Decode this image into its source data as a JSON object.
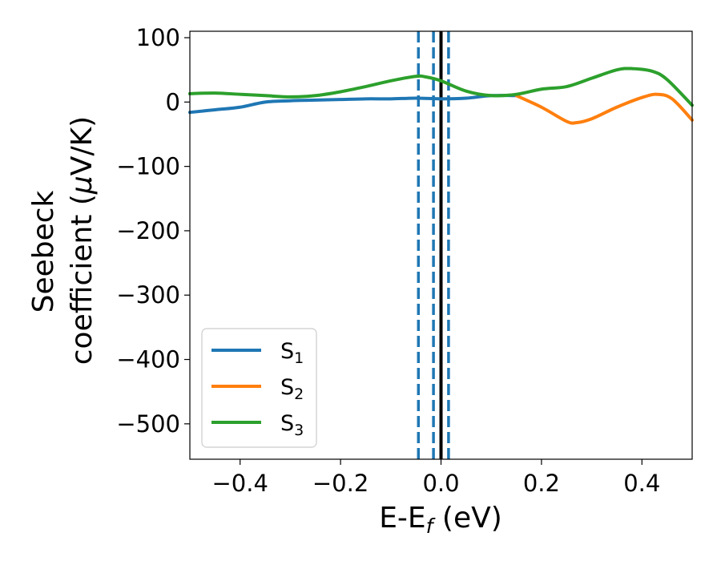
{
  "chart_data": {
    "type": "line",
    "title": "",
    "xlabel": "E-E",
    "xlabel_sub": "f",
    "xlabel_unit": " (eV)",
    "ylabel_line1": "Seebeck",
    "ylabel_line2": "coefficient  (",
    "ylabel_mu": "μ",
    "ylabel_unit": "V/K)",
    "xlim": [
      -0.5,
      0.5
    ],
    "ylim": [
      -555,
      110
    ],
    "xticks": [
      -0.4,
      -0.2,
      0.0,
      0.2,
      0.4
    ],
    "xtick_labels": [
      "−0.4",
      "−0.2",
      "0.0",
      "0.2",
      "0.4"
    ],
    "yticks": [
      100,
      0,
      -100,
      -200,
      -300,
      -400,
      -500
    ],
    "ytick_labels": [
      "100",
      "0",
      "−100",
      "−200",
      "−300",
      "−400",
      "−500"
    ],
    "legend_position": "lower-left",
    "vlines": [
      {
        "x": 0.0,
        "style": "solid",
        "color": "#000000"
      },
      {
        "x": -0.045,
        "style": "dashed",
        "color": "#1f77b4"
      },
      {
        "x": -0.015,
        "style": "dashed",
        "color": "#1f77b4"
      },
      {
        "x": 0.015,
        "style": "dashed",
        "color": "#1f77b4"
      }
    ],
    "series": [
      {
        "name": "S",
        "sub": "1",
        "color": "#1f77b4",
        "x": [
          -0.5,
          -0.45,
          -0.4,
          -0.35,
          -0.3,
          -0.25,
          -0.2,
          -0.15,
          -0.1,
          -0.05,
          0.0,
          0.05,
          0.1,
          0.15
        ],
        "y": [
          -16,
          -12,
          -8,
          0,
          2,
          3,
          4,
          5,
          5,
          6,
          5,
          6,
          10,
          10
        ]
      },
      {
        "name": "S",
        "sub": "2",
        "color": "#ff7f0e",
        "x": [
          0.15,
          0.2,
          0.25,
          0.27,
          0.3,
          0.35,
          0.4,
          0.43,
          0.46,
          0.5
        ],
        "y": [
          10,
          -8,
          -30,
          -32,
          -26,
          -8,
          7,
          12,
          5,
          -28
        ]
      },
      {
        "name": "S",
        "sub": "3",
        "color": "#2ca02c",
        "x": [
          -0.5,
          -0.45,
          -0.4,
          -0.35,
          -0.3,
          -0.25,
          -0.2,
          -0.15,
          -0.1,
          -0.05,
          -0.03,
          0.0,
          0.05,
          0.1,
          0.15,
          0.2,
          0.25,
          0.3,
          0.35,
          0.38,
          0.42,
          0.45,
          0.5
        ],
        "y": [
          13,
          14,
          12,
          10,
          8,
          10,
          16,
          24,
          33,
          40,
          39,
          33,
          17,
          10,
          12,
          20,
          24,
          37,
          50,
          52,
          48,
          35,
          -5
        ]
      }
    ]
  }
}
